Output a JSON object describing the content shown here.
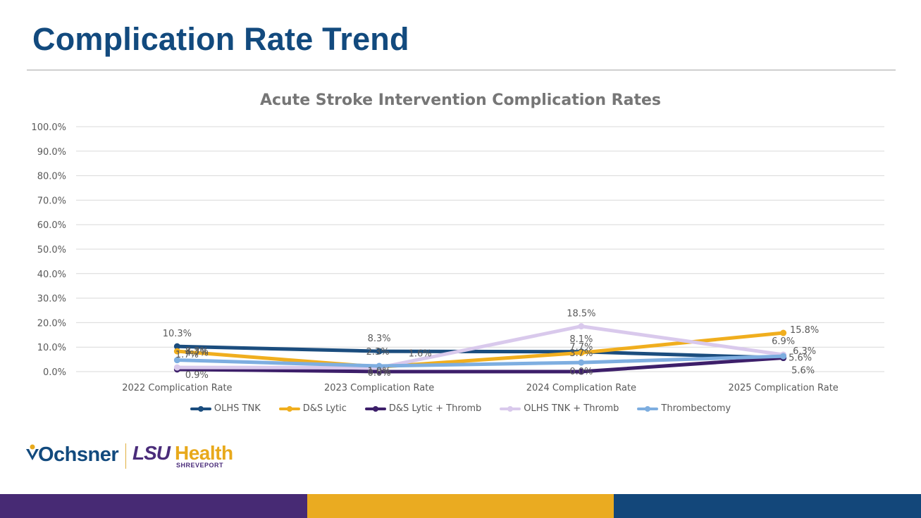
{
  "slide": {
    "title": "Complication Rate Trend"
  },
  "logos": {
    "ochsner": "Ochsner",
    "lsu": "LSU",
    "health": "Health",
    "shreveport": "SHREVEPORT"
  },
  "footer_colors": [
    "#472a74",
    "#eaab21",
    "#13477a"
  ],
  "chart_data": {
    "type": "line",
    "title": "Acute Stroke Intervention Complication Rates",
    "categories": [
      "2022 Complication Rate",
      "2023 Complication Rate",
      "2024 Complication Rate",
      "2025 Complication Rate"
    ],
    "ylim": [
      0,
      100
    ],
    "yticks": [
      "0.0%",
      "10.0%",
      "20.0%",
      "30.0%",
      "40.0%",
      "50.0%",
      "60.0%",
      "70.0%",
      "80.0%",
      "90.0%",
      "100.0%"
    ],
    "grid": true,
    "legend_position": "bottom",
    "series": [
      {
        "name": "OLHS TNK",
        "color": "#1b4d7e",
        "values": [
          10.3,
          8.3,
          8.1,
          5.6
        ],
        "labels": [
          "10.3%",
          "8.3%",
          "8.1%",
          "5.6%"
        ]
      },
      {
        "name": "D&S Lytic",
        "color": "#f0ae1e",
        "values": [
          8.3,
          1.9,
          7.7,
          15.8
        ],
        "labels": [
          "8.3%",
          "1.9%",
          "7.7%",
          "15.8%"
        ]
      },
      {
        "name": "D&S Lytic + Thromb",
        "color": "#3d1f6a",
        "values": [
          0.9,
          0.0,
          0.0,
          5.6
        ],
        "labels": [
          "0.9%",
          "0.0%",
          "0.0%",
          "5.6%"
        ]
      },
      {
        "name": "OLHS TNK + Thromb",
        "color": "#d9c9ec",
        "values": [
          1.7,
          1.6,
          18.5,
          6.9
        ],
        "labels": [
          "1.7%",
          "1.6%",
          "18.5%",
          "6.9%"
        ]
      },
      {
        "name": "Thrombectomy",
        "color": "#7eaee0",
        "values": [
          4.7,
          2.3,
          3.7,
          6.3
        ],
        "labels": [
          "4.7%",
          "2.3%",
          "3.7%",
          "6.3%"
        ]
      }
    ]
  }
}
